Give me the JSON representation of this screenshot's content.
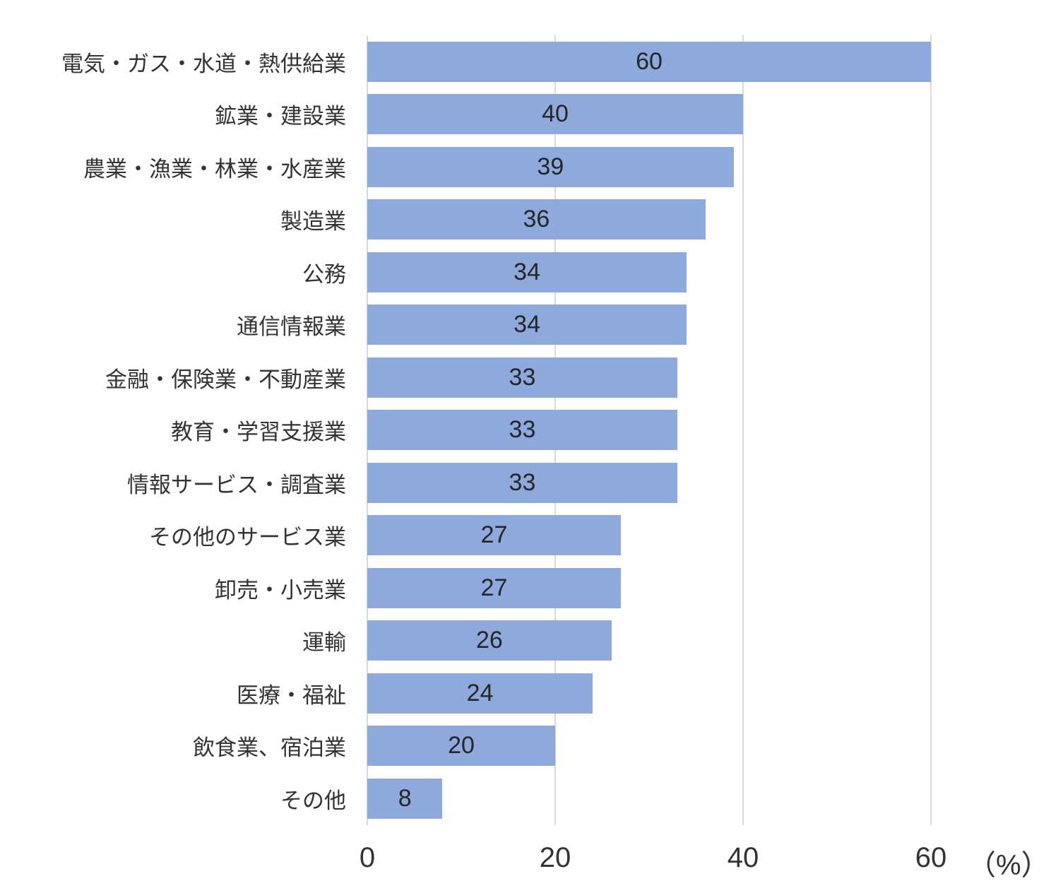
{
  "chart_data": {
    "type": "bar",
    "orientation": "horizontal",
    "title": "",
    "xlabel": "",
    "ylabel": "",
    "unit_label": "（%）",
    "xlim": [
      0,
      60
    ],
    "xticks": [
      0,
      20,
      40,
      60
    ],
    "grid": true,
    "legend": false,
    "bar_color": "#8ea9db",
    "gridline_color": "#d9d9d9",
    "text_color": "#333333",
    "categories": [
      "電気・ガス・水道・熱供給業",
      "鉱業・建設業",
      "農業・漁業・林業・水産業",
      "製造業",
      "公務",
      "通信情報業",
      "金融・保険業・不動産業",
      "教育・学習支援業",
      "情報サービス・調査業",
      "その他のサービス業",
      "卸売・小売業",
      "運輸",
      "医療・福祉",
      "飲食業、宿泊業",
      "その他"
    ],
    "values": [
      60,
      40,
      39,
      36,
      34,
      34,
      33,
      33,
      33,
      27,
      27,
      26,
      24,
      20,
      8
    ]
  }
}
